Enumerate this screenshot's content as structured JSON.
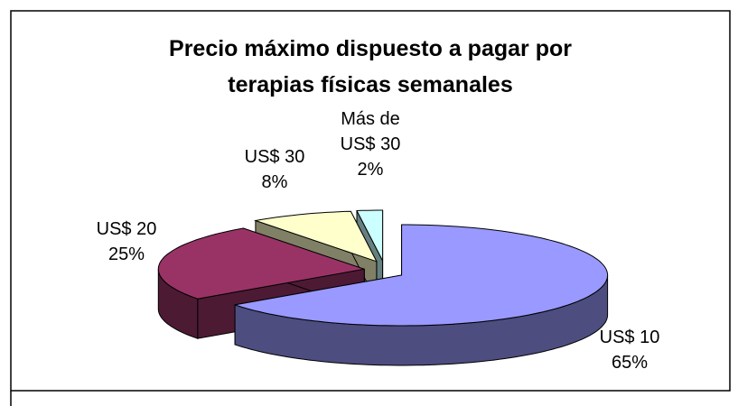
{
  "chart_data": {
    "type": "pie",
    "title": "Precio máximo dispuesto a pagar por terapias físicas semanales",
    "categories": [
      "US$ 10",
      "US$ 20",
      "US$ 30",
      "Más de US$ 30"
    ],
    "values": [
      65,
      25,
      8,
      2
    ],
    "value_labels": [
      "65%",
      "25%",
      "8%",
      "2%"
    ],
    "colors": [
      "#9999ff",
      "#993366",
      "#ffffcc",
      "#ccffff"
    ]
  }
}
